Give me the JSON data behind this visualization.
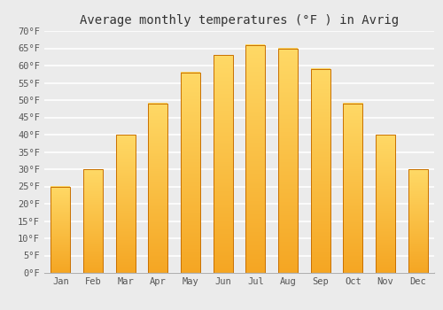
{
  "title": "Average monthly temperatures (°F ) in Avrig",
  "months": [
    "Jan",
    "Feb",
    "Mar",
    "Apr",
    "May",
    "Jun",
    "Jul",
    "Aug",
    "Sep",
    "Oct",
    "Nov",
    "Dec"
  ],
  "values": [
    25,
    30,
    40,
    49,
    58,
    63,
    66,
    65,
    59,
    49,
    40,
    30
  ],
  "bar_color_bottom": "#F5A623",
  "bar_color_top": "#FFD966",
  "ylim": [
    0,
    70
  ],
  "yticks": [
    0,
    5,
    10,
    15,
    20,
    25,
    30,
    35,
    40,
    45,
    50,
    55,
    60,
    65,
    70
  ],
  "ytick_labels": [
    "0°F",
    "5°F",
    "10°F",
    "15°F",
    "20°F",
    "25°F",
    "30°F",
    "35°F",
    "40°F",
    "45°F",
    "50°F",
    "55°F",
    "60°F",
    "65°F",
    "70°F"
  ],
  "background_color": "#ebebeb",
  "grid_color": "#ffffff",
  "title_fontsize": 10,
  "tick_fontsize": 7.5,
  "bar_edge_color": "#c87000",
  "bar_edge_linewidth": 0.7,
  "font_family": "monospace",
  "bar_width": 0.6
}
